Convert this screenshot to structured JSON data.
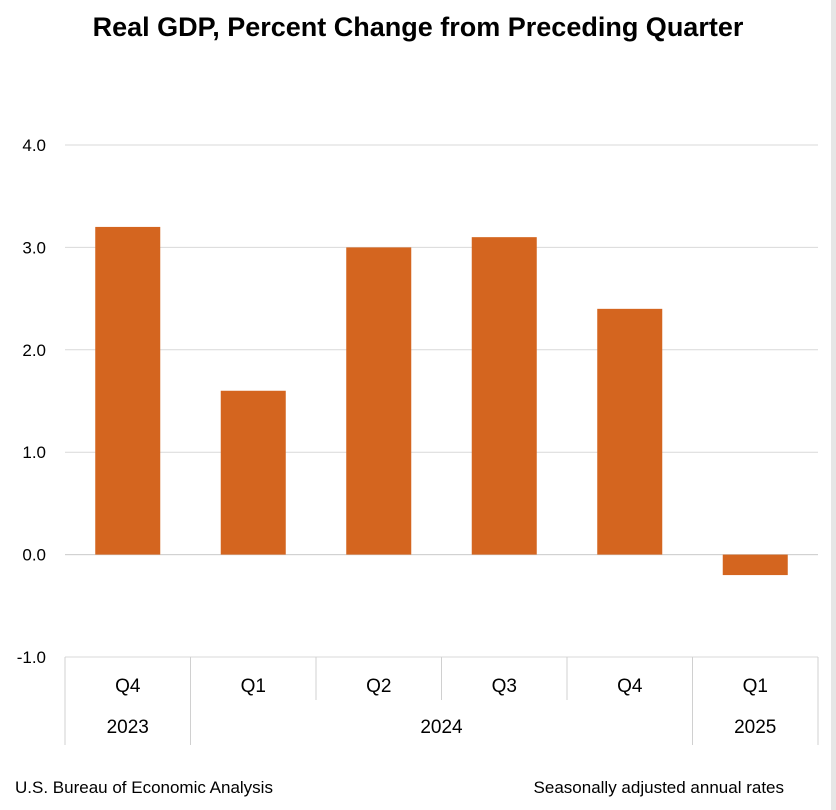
{
  "chart_data": {
    "type": "bar",
    "title": "Real GDP, Percent Change from Preceding Quarter",
    "categories": [
      "Q4",
      "Q1",
      "Q2",
      "Q3",
      "Q4",
      "Q1"
    ],
    "years": [
      {
        "label": "2023",
        "span": 1
      },
      {
        "label": "2024",
        "span": 4
      },
      {
        "label": "2025",
        "span": 1
      }
    ],
    "values": [
      3.2,
      1.6,
      3.0,
      3.1,
      2.4,
      -0.2
    ],
    "yticks": [
      "4.0",
      "3.0",
      "2.0",
      "1.0",
      "0.0",
      "-1.0"
    ],
    "ylim": [
      -1,
      4
    ],
    "grid": true,
    "color": "#d4651f"
  },
  "footer": {
    "source": "U.S. Bureau of Economic Analysis",
    "note": "Seasonally adjusted annual rates"
  }
}
